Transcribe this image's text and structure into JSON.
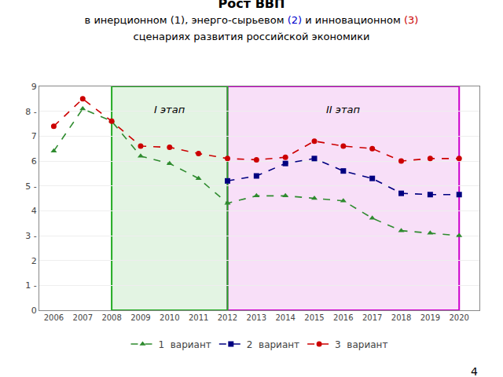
{
  "chart_data": {
    "type": "line",
    "title": "Рост ВВП",
    "subtitle": [
      [
        {
          "text": "в инерционном (1), энерго-сырьевом "
        },
        {
          "text": "(2)",
          "color": "#0000CC"
        },
        {
          "text": " и инновационном "
        },
        {
          "text": "(3)",
          "color": "#CC0000"
        }
      ],
      [
        {
          "text": "сценариях развития российской экономики"
        }
      ]
    ],
    "x": [
      2006,
      2007,
      2008,
      2009,
      2010,
      2011,
      2012,
      2013,
      2014,
      2015,
      2016,
      2017,
      2018,
      2019,
      2020
    ],
    "series": [
      {
        "name": "1  вариант",
        "color": "#2E8B2E",
        "marker": "triangle-up",
        "line_style": "dash",
        "values": [
          6.4,
          8.1,
          7.6,
          6.2,
          5.9,
          5.3,
          4.3,
          4.6,
          4.6,
          4.5,
          4.4,
          3.7,
          3.2,
          3.1,
          3.0
        ]
      },
      {
        "name": "2  вариант",
        "color": "#000080",
        "marker": "square",
        "line_style": "dash",
        "values": [
          null,
          null,
          null,
          null,
          null,
          null,
          5.2,
          5.4,
          5.9,
          6.1,
          5.6,
          5.3,
          4.7,
          4.65,
          4.65
        ]
      },
      {
        "name": "3  вариант",
        "color": "#CC0000",
        "marker": "circle",
        "line_style": "dash",
        "values": [
          7.4,
          8.5,
          7.6,
          6.6,
          6.55,
          6.3,
          6.1,
          6.05,
          6.15,
          6.8,
          6.6,
          6.5,
          6.0,
          6.1,
          6.1
        ]
      }
    ],
    "xlim": [
      2005.5,
      2020.7
    ],
    "xticks": [
      2006,
      2007,
      2008,
      2009,
      2010,
      2011,
      2012,
      2013,
      2014,
      2015,
      2016,
      2017,
      2018,
      2019,
      2020
    ],
    "ylim": [
      0,
      9
    ],
    "yticks": [
      0,
      {
        "value": 1,
        "label": "1 -"
      },
      2,
      {
        "value": 3,
        "label": "3 -"
      },
      4,
      {
        "value": 5,
        "label": "5 -"
      },
      6,
      7,
      {
        "value": 8,
        "label": "8 -"
      },
      9
    ],
    "grid": true,
    "legend": "bottom",
    "phases": [
      {
        "label": "II этап",
        "start": 2012,
        "end": 2020,
        "color": "#CC00CC"
      },
      {
        "label": "I этап",
        "start": 2008,
        "end": 2012,
        "color": "#22AA22"
      }
    ],
    "annotations": [
      "4"
    ]
  }
}
